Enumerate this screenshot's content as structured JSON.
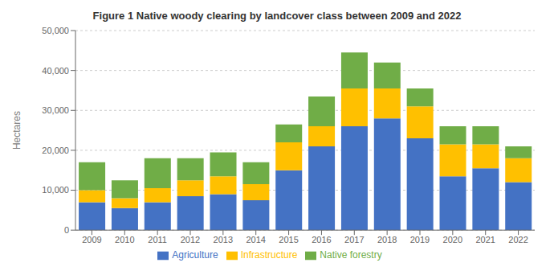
{
  "chart_data": {
    "type": "bar",
    "title": "Figure 1 Native woody clearing by landcover class between 2009 and 2022",
    "ylabel": "Hectares",
    "categories": [
      "2009",
      "2010",
      "2011",
      "2012",
      "2013",
      "2014",
      "2015",
      "2016",
      "2017",
      "2018",
      "2019",
      "2020",
      "2021",
      "2022"
    ],
    "series": [
      {
        "name": "Agriculture",
        "color": "#4472C4",
        "values": [
          7000,
          5500,
          7000,
          8500,
          9000,
          7500,
          15000,
          21000,
          26000,
          28000,
          23000,
          13500,
          15500,
          12000
        ]
      },
      {
        "name": "Infrastructure",
        "color": "#FFC000",
        "values": [
          3000,
          2500,
          3500,
          4000,
          4500,
          4000,
          7000,
          5000,
          9500,
          7500,
          8000,
          8000,
          6000,
          6000
        ]
      },
      {
        "name": "Native forestry",
        "color": "#70AD47",
        "values": [
          7000,
          4500,
          7500,
          5500,
          6000,
          5500,
          4500,
          7500,
          9000,
          6500,
          4500,
          4500,
          4500,
          3000
        ]
      }
    ],
    "stacked": true,
    "ylim": [
      0,
      50000
    ],
    "yticks": [
      0,
      {
        "value": 10000,
        "label": "10,000"
      },
      {
        "value": 20000,
        "label": "20,000"
      },
      {
        "value": 30000,
        "label": "30,000"
      },
      {
        "value": 40000,
        "label": "40,000"
      },
      {
        "value": 50000,
        "label": "50,000"
      }
    ],
    "grid": true,
    "legend": "bottom"
  }
}
